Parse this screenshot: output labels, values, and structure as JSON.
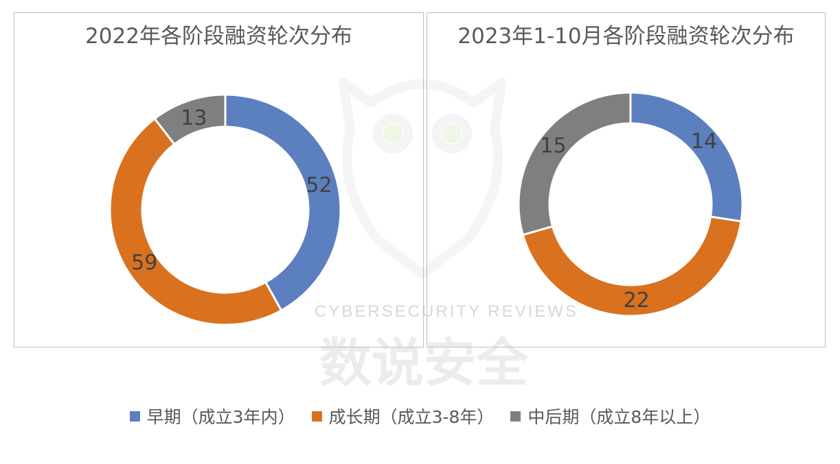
{
  "colors": {
    "early": "#5b7fbf",
    "growth": "#d9711f",
    "late": "#7f7f7f"
  },
  "legend": [
    {
      "label": "早期（成立3年内）",
      "color": "#5b7fbf"
    },
    {
      "label": "成长期（成立3-8年）",
      "color": "#d9711f"
    },
    {
      "label": "中后期（成立8年以上）",
      "color": "#7f7f7f"
    }
  ],
  "chart_data": [
    {
      "type": "pie",
      "subtype": "donut",
      "title": "2022年各阶段融资轮次分布",
      "categories": [
        "早期（成立3年内）",
        "成长期（成立3-8年）",
        "中后期（成立8年以上）"
      ],
      "values": [
        52,
        59,
        13
      ],
      "colors": [
        "#5b7fbf",
        "#d9711f",
        "#7f7f7f"
      ],
      "legend": "bottom"
    },
    {
      "type": "pie",
      "subtype": "donut",
      "title": "2023年1-10月各阶段融资轮次分布",
      "categories": [
        "早期（成立3年内）",
        "成长期（成立3-8年）",
        "中后期（成立8年以上）"
      ],
      "values": [
        14,
        22,
        15
      ],
      "colors": [
        "#5b7fbf",
        "#d9711f",
        "#7f7f7f"
      ],
      "legend": "bottom"
    }
  ],
  "watermark": {
    "text_en": "CYBERSECURITY   REVIEWS",
    "text_cn": "数说安全"
  }
}
